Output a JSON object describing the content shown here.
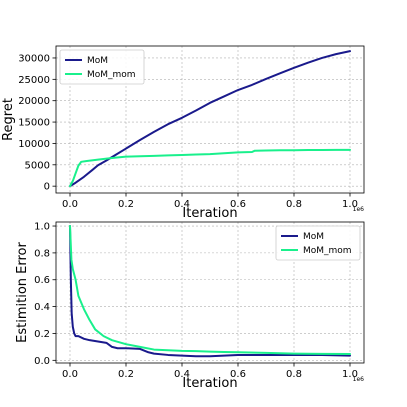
{
  "chart_data": [
    {
      "type": "line",
      "title": "",
      "xlabel": "Iteration",
      "ylabel": "Regret",
      "x_offset_label": "1e6",
      "xlim": [
        -0.05,
        1.05
      ],
      "ylim": [
        -1600,
        32800
      ],
      "x_ticks": [
        0.0,
        0.2,
        0.4,
        0.6,
        0.8,
        1.0
      ],
      "x_tick_labels": [
        "0.0",
        "0.2",
        "0.4",
        "0.6",
        "0.8",
        "1.0"
      ],
      "y_ticks": [
        0,
        5000,
        10000,
        15000,
        20000,
        25000,
        30000
      ],
      "y_tick_labels": [
        "0",
        "5000",
        "10000",
        "15000",
        "20000",
        "25000",
        "30000"
      ],
      "grid": true,
      "legend_position": "top-left",
      "series": [
        {
          "name": "MoM",
          "color": "#1a1a8c",
          "x": [
            0.0,
            0.02,
            0.05,
            0.08,
            0.1,
            0.13,
            0.16,
            0.2,
            0.25,
            0.3,
            0.35,
            0.4,
            0.45,
            0.5,
            0.55,
            0.6,
            0.65,
            0.7,
            0.75,
            0.8,
            0.85,
            0.9,
            0.95,
            1.0
          ],
          "values": [
            0,
            800,
            2200,
            3800,
            4900,
            6000,
            7200,
            8800,
            10800,
            12700,
            14500,
            16000,
            17700,
            19500,
            21000,
            22500,
            23700,
            25100,
            26400,
            27700,
            28900,
            30000,
            30900,
            31600
          ]
        },
        {
          "name": "MoM_mom",
          "color": "#19f08c",
          "x": [
            0.0,
            0.01,
            0.02,
            0.03,
            0.04,
            0.06,
            0.1,
            0.15,
            0.2,
            0.25,
            0.3,
            0.35,
            0.4,
            0.45,
            0.5,
            0.55,
            0.6,
            0.65,
            0.66,
            0.7,
            0.75,
            0.8,
            0.85,
            0.9,
            0.95,
            1.0
          ],
          "values": [
            0,
            1200,
            3000,
            4800,
            5700,
            5900,
            6200,
            6600,
            6900,
            7000,
            7100,
            7200,
            7300,
            7400,
            7500,
            7700,
            7900,
            8000,
            8300,
            8350,
            8400,
            8400,
            8450,
            8450,
            8500,
            8500
          ]
        }
      ]
    },
    {
      "type": "line",
      "title": "",
      "xlabel": "Iteration",
      "ylabel": "Estimition Error",
      "x_offset_label": "1e6",
      "xlim": [
        -0.05,
        1.05
      ],
      "ylim": [
        -0.02,
        1.03
      ],
      "x_ticks": [
        0.0,
        0.2,
        0.4,
        0.6,
        0.8,
        1.0
      ],
      "x_tick_labels": [
        "0.0",
        "0.2",
        "0.4",
        "0.6",
        "0.8",
        "1.0"
      ],
      "y_ticks": [
        0.0,
        0.2,
        0.4,
        0.6,
        0.8,
        1.0
      ],
      "y_tick_labels": [
        "0.0",
        "0.2",
        "0.4",
        "0.6",
        "0.8",
        "1.0"
      ],
      "grid": true,
      "legend_position": "top-right",
      "series": [
        {
          "name": "MoM",
          "color": "#1a1a8c",
          "x": [
            0.0,
            0.003,
            0.006,
            0.01,
            0.015,
            0.02,
            0.03,
            0.05,
            0.07,
            0.1,
            0.13,
            0.15,
            0.17,
            0.2,
            0.25,
            0.28,
            0.3,
            0.35,
            0.4,
            0.45,
            0.5,
            0.55,
            0.6,
            0.7,
            0.8,
            0.9,
            1.0
          ],
          "values": [
            1.0,
            0.6,
            0.35,
            0.25,
            0.2,
            0.18,
            0.18,
            0.16,
            0.15,
            0.14,
            0.13,
            0.1,
            0.09,
            0.09,
            0.085,
            0.06,
            0.05,
            0.04,
            0.035,
            0.03,
            0.03,
            0.035,
            0.04,
            0.04,
            0.04,
            0.04,
            0.035
          ]
        },
        {
          "name": "MoM_mom",
          "color": "#19f08c",
          "x": [
            0.0,
            0.005,
            0.01,
            0.02,
            0.03,
            0.05,
            0.07,
            0.09,
            0.12,
            0.15,
            0.2,
            0.25,
            0.3,
            0.35,
            0.4,
            0.45,
            0.5,
            0.55,
            0.6,
            0.7,
            0.8,
            0.9,
            1.0
          ],
          "values": [
            1.0,
            0.75,
            0.68,
            0.6,
            0.48,
            0.38,
            0.3,
            0.23,
            0.18,
            0.15,
            0.12,
            0.1,
            0.08,
            0.075,
            0.07,
            0.068,
            0.065,
            0.062,
            0.06,
            0.055,
            0.05,
            0.048,
            0.047
          ]
        }
      ]
    }
  ]
}
